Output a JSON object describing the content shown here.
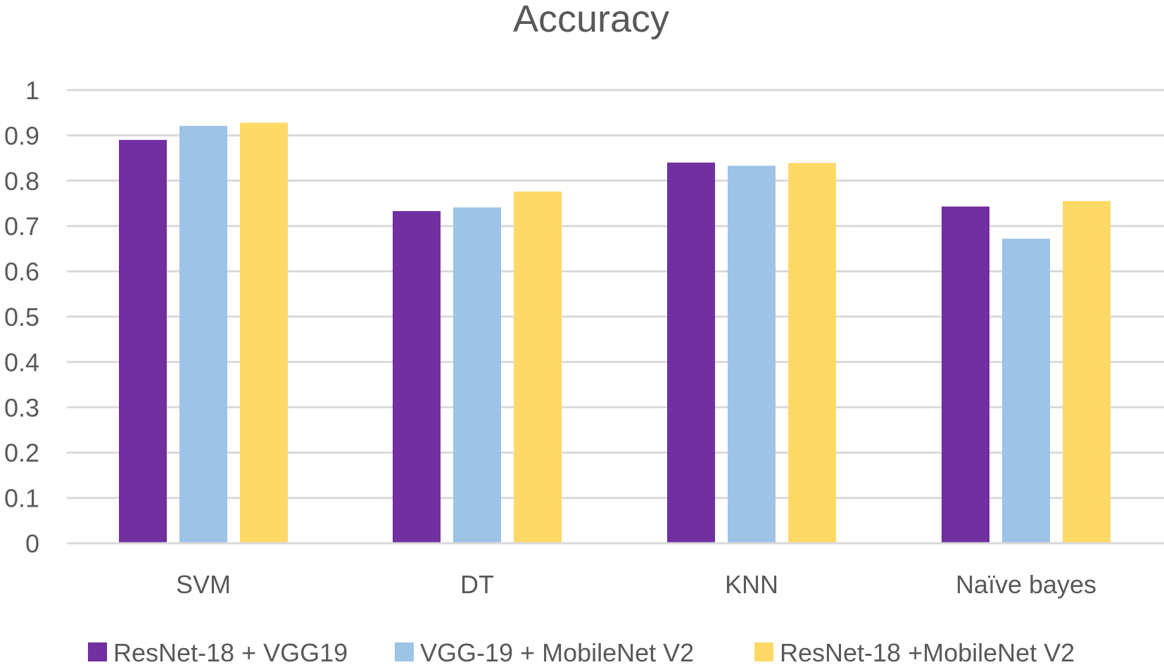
{
  "chart_data": {
    "type": "bar",
    "title": "Accuracy",
    "xlabel": "",
    "ylabel": "",
    "categories": [
      "SVM",
      "DT",
      "KNN",
      "Naïve bayes"
    ],
    "ylim": [
      0,
      1
    ],
    "yticks": [
      0,
      0.1,
      0.2,
      0.3,
      0.4,
      0.5,
      0.6,
      0.7,
      0.8,
      0.9,
      1
    ],
    "ytick_labels": [
      "0",
      "0.1",
      "0.2",
      "0.3",
      "0.4",
      "0.5",
      "0.6",
      "0.7",
      "0.8",
      "0.9",
      "1"
    ],
    "grid": true,
    "legend_position": "bottom",
    "series": [
      {
        "name": "ResNet-18 + VGG19",
        "color": "#7030a0",
        "values": [
          0.89,
          0.733,
          0.84,
          0.743
        ]
      },
      {
        "name": "VGG-19 + MobileNet V2",
        "color": "#9dc3e6",
        "values": [
          0.921,
          0.741,
          0.833,
          0.672
        ]
      },
      {
        "name": "ResNet-18 +MobileNet V2",
        "color": "#ffd966",
        "values": [
          0.928,
          0.776,
          0.839,
          0.755
        ]
      }
    ]
  }
}
